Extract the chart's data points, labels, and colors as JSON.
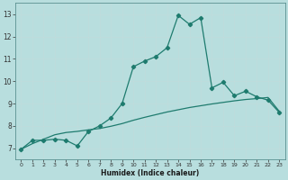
{
  "xlabel": "Humidex (Indice chaleur)",
  "ylabel": "",
  "background_color": "#b8dede",
  "grid_color": "#d4eeee",
  "line_color": "#1e7b6e",
  "xlim": [
    -0.5,
    23.5
  ],
  "ylim": [
    6.5,
    13.5
  ],
  "xticks": [
    0,
    1,
    2,
    3,
    4,
    5,
    6,
    7,
    8,
    9,
    10,
    11,
    12,
    13,
    14,
    15,
    16,
    17,
    18,
    19,
    20,
    21,
    22,
    23
  ],
  "yticks": [
    7,
    8,
    9,
    10,
    11,
    12,
    13
  ],
  "series1_x": [
    0,
    1,
    2,
    3,
    4,
    5,
    6,
    7,
    8,
    9,
    10,
    11,
    12,
    13,
    14,
    15,
    16,
    17,
    18,
    19,
    20,
    21,
    22,
    23
  ],
  "series1_y": [
    6.95,
    7.35,
    7.35,
    7.4,
    7.35,
    7.1,
    7.75,
    8.0,
    8.35,
    9.0,
    10.65,
    10.9,
    11.1,
    11.5,
    12.95,
    12.55,
    12.85,
    9.7,
    9.95,
    9.35,
    9.55,
    9.3,
    9.15,
    8.6
  ],
  "series2_x": [
    0,
    1,
    2,
    3,
    4,
    5,
    6,
    7,
    8,
    9,
    10,
    11,
    12,
    13,
    14,
    15,
    16,
    17,
    18,
    19,
    20,
    21,
    22,
    23
  ],
  "series2_y": [
    6.95,
    7.2,
    7.4,
    7.6,
    7.7,
    7.75,
    7.82,
    7.88,
    7.98,
    8.1,
    8.25,
    8.38,
    8.5,
    8.62,
    8.72,
    8.82,
    8.9,
    8.98,
    9.05,
    9.12,
    9.18,
    9.22,
    9.27,
    8.65
  ],
  "marker": "D",
  "marker_size": 2.2,
  "line_width": 0.9
}
